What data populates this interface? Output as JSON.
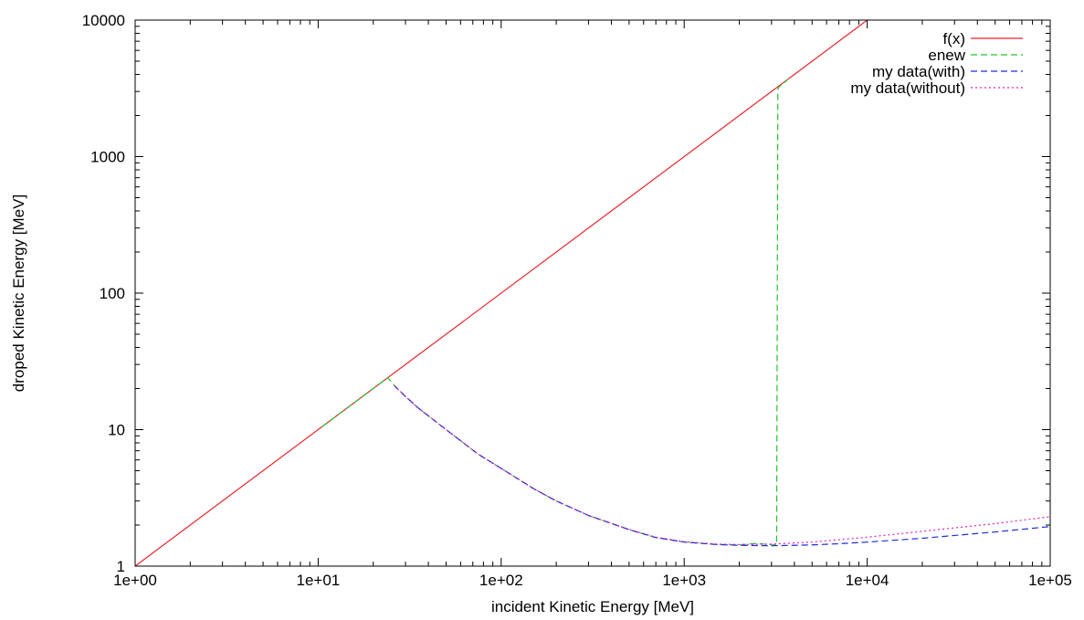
{
  "chart_data": {
    "type": "line",
    "title": "",
    "xlabel": "incident Kinetic Energy [MeV]",
    "ylabel": "droped Kinetic Energy [MeV]",
    "xscale": "log",
    "yscale": "log",
    "xlim": [
      1,
      100000
    ],
    "ylim": [
      1,
      10000
    ],
    "grid": false,
    "legend_position": "top-right",
    "x_ticks": [
      {
        "value": 1,
        "label": "1e+00"
      },
      {
        "value": 10,
        "label": "1e+01"
      },
      {
        "value": 100,
        "label": "1e+02"
      },
      {
        "value": 1000,
        "label": "1e+03"
      },
      {
        "value": 10000,
        "label": "1e+04"
      },
      {
        "value": 100000,
        "label": "1e+05"
      }
    ],
    "y_ticks": [
      {
        "value": 1,
        "label": "1"
      },
      {
        "value": 10,
        "label": "10"
      },
      {
        "value": 100,
        "label": "100"
      },
      {
        "value": 1000,
        "label": "1000"
      },
      {
        "value": 10000,
        "label": "10000"
      }
    ],
    "series": [
      {
        "name": "f(x)",
        "color": "#e8242c",
        "dash": "solid",
        "x": [
          1,
          10000
        ],
        "y": [
          1,
          10000
        ]
      },
      {
        "name": "enew",
        "color": "#22c32a",
        "dash": "dashed",
        "x": [
          10.5,
          24,
          27,
          35,
          50,
          75,
          100,
          150,
          200,
          300,
          500,
          700,
          1000,
          1500,
          2000,
          2500,
          3000,
          3200,
          3250,
          3300,
          3500,
          3700
        ],
        "y": [
          10.5,
          24,
          20,
          14.5,
          10.0,
          6.6,
          5.2,
          3.7,
          3.0,
          2.35,
          1.85,
          1.62,
          1.5,
          1.44,
          1.43,
          1.47,
          1.43,
          1.43,
          3100,
          3250,
          3450,
          3700
        ]
      },
      {
        "name": "my data(with)",
        "color": "#1f2bd6",
        "dash": "dashed",
        "x": [
          26,
          30,
          35,
          50,
          75,
          100,
          150,
          200,
          300,
          500,
          700,
          1000,
          1500,
          2000,
          3000,
          5000,
          7000,
          10000,
          20000,
          50000,
          100000
        ],
        "y": [
          21,
          17.5,
          14.5,
          10.0,
          6.6,
          5.2,
          3.7,
          3.0,
          2.35,
          1.85,
          1.62,
          1.5,
          1.44,
          1.42,
          1.41,
          1.43,
          1.46,
          1.5,
          1.6,
          1.78,
          1.95
        ]
      },
      {
        "name": "my data(without)",
        "color": "#e020c0",
        "dash": "dotted",
        "x": [
          26,
          30,
          35,
          50,
          75,
          100,
          150,
          200,
          300,
          500,
          700,
          1000,
          1500,
          2000,
          3000,
          5000,
          7000,
          10000,
          20000,
          50000,
          100000
        ],
        "y": [
          21,
          17.5,
          14.5,
          10.0,
          6.6,
          5.2,
          3.7,
          3.0,
          2.35,
          1.86,
          1.63,
          1.51,
          1.45,
          1.44,
          1.45,
          1.5,
          1.56,
          1.63,
          1.8,
          2.05,
          2.3
        ]
      }
    ]
  }
}
